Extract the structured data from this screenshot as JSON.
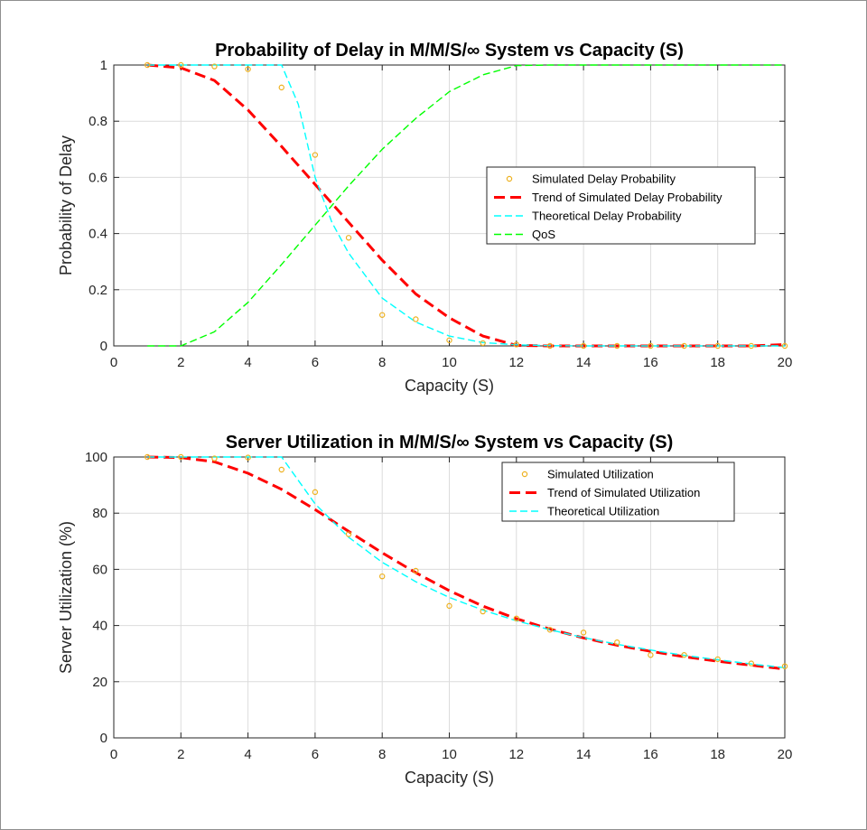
{
  "chart_data": [
    {
      "type": "line",
      "title": "Probability of Delay in M/M/S/∞ System vs Capacity (S)",
      "xlabel": "Capacity (S)",
      "ylabel": "Probability of Delay",
      "xlim": [
        0,
        20
      ],
      "ylim": [
        0,
        1
      ],
      "xticks": [
        0,
        2,
        4,
        6,
        8,
        10,
        12,
        14,
        16,
        18,
        20
      ],
      "yticks": [
        0,
        0.2,
        0.4,
        0.6,
        0.8,
        1
      ],
      "ytick_labels": [
        "0",
        "0.2",
        "0.4",
        "0.6",
        "0.8",
        "1"
      ],
      "grid": true,
      "legend_position": "right",
      "series": [
        {
          "name": "Simulated Delay Probability",
          "style": "markers",
          "color": "#EDB120",
          "x": [
            1,
            2,
            3,
            4,
            5,
            6,
            7,
            8,
            9,
            10,
            11,
            12,
            13,
            14,
            15,
            16,
            17,
            18,
            19,
            20
          ],
          "y": [
            1.0,
            1.0,
            0.995,
            0.985,
            0.92,
            0.68,
            0.385,
            0.11,
            0.095,
            0.02,
            0.01,
            0.005,
            0.0,
            0.0,
            0.0,
            0.0,
            0.0,
            0.0,
            0.0,
            0.0
          ]
        },
        {
          "name": "Trend of Simulated Delay Probability",
          "style": "thick-dash",
          "color": "#FF0000",
          "x": [
            1,
            2,
            3,
            4,
            5,
            6,
            7,
            8,
            9,
            10,
            11,
            12,
            13,
            14,
            15,
            16,
            17,
            18,
            19,
            20
          ],
          "y": [
            1.0,
            0.99,
            0.945,
            0.84,
            0.71,
            0.575,
            0.44,
            0.305,
            0.185,
            0.1,
            0.035,
            0.002,
            0.0,
            0.0,
            0.0,
            0.0,
            0.0,
            0.0,
            0.0,
            0.005
          ]
        },
        {
          "name": "Theoretical Delay Probability",
          "style": "dash",
          "color": "#00FFFF",
          "x": [
            1,
            2,
            3,
            4,
            5,
            5.5,
            6,
            6.5,
            7,
            8,
            9,
            10,
            11,
            12,
            13,
            14,
            15,
            16,
            17,
            18,
            19,
            20
          ],
          "y": [
            1.0,
            1.0,
            1.0,
            1.0,
            1.0,
            0.86,
            0.6,
            0.44,
            0.33,
            0.17,
            0.085,
            0.035,
            0.012,
            0.004,
            0.001,
            0.0,
            0.0,
            0.0,
            0.0,
            0.0,
            0.0,
            0.0
          ]
        },
        {
          "name": "QoS",
          "style": "dash",
          "color": "#00FF00",
          "x": [
            1,
            2,
            3,
            4,
            5,
            6,
            7,
            8,
            9,
            10,
            11,
            12,
            13,
            14,
            15,
            16,
            17,
            18,
            19,
            20
          ],
          "y": [
            0.0,
            0.0,
            0.05,
            0.155,
            0.29,
            0.43,
            0.57,
            0.7,
            0.81,
            0.905,
            0.965,
            0.998,
            1.0,
            1.0,
            1.0,
            1.0,
            1.0,
            1.0,
            1.0,
            1.0
          ]
        }
      ]
    },
    {
      "type": "line",
      "title": "Server Utilization in M/M/S/∞ System vs Capacity (S)",
      "xlabel": "Capacity (S)",
      "ylabel": "Server Utilization (%)",
      "xlim": [
        0,
        20
      ],
      "ylim": [
        0,
        100
      ],
      "xticks": [
        0,
        2,
        4,
        6,
        8,
        10,
        12,
        14,
        16,
        18,
        20
      ],
      "yticks": [
        0,
        20,
        40,
        60,
        80,
        100
      ],
      "ytick_labels": [
        "0",
        "20",
        "40",
        "60",
        "80",
        "100"
      ],
      "grid": true,
      "legend_position": "top-right",
      "series": [
        {
          "name": "Simulated Utilization",
          "style": "markers",
          "color": "#EDB120",
          "x": [
            1,
            2,
            3,
            4,
            5,
            6,
            7,
            8,
            9,
            10,
            11,
            12,
            13,
            14,
            15,
            16,
            17,
            18,
            19,
            20
          ],
          "y": [
            100,
            100,
            99.5,
            99.8,
            95.5,
            87.5,
            72.5,
            57.5,
            59.5,
            47,
            45,
            42.5,
            38.5,
            37.5,
            34,
            29.5,
            29.5,
            28,
            26.5,
            25.5
          ]
        },
        {
          "name": "Trend of Simulated Utilization",
          "style": "thick-dash",
          "color": "#FF0000",
          "x": [
            1,
            2,
            3,
            4,
            5,
            6,
            7,
            8,
            9,
            10,
            11,
            12,
            13,
            14,
            15,
            16,
            17,
            18,
            19,
            20
          ],
          "y": [
            100,
            99.8,
            98.3,
            94.2,
            88.5,
            81.3,
            73.5,
            65.9,
            58.8,
            52.4,
            46.9,
            42.4,
            38.7,
            35.6,
            33.0,
            30.8,
            28.9,
            27.3,
            25.9,
            24.5
          ]
        },
        {
          "name": "Theoretical Utilization",
          "style": "dash",
          "color": "#00FFFF",
          "x": [
            1,
            2,
            3,
            4,
            5,
            6,
            7,
            8,
            9,
            10,
            11,
            12,
            13,
            14,
            15,
            16,
            17,
            18,
            19,
            20
          ],
          "y": [
            100,
            100,
            100,
            100,
            100,
            83.3,
            71.4,
            62.5,
            55.6,
            50.0,
            45.5,
            41.7,
            38.5,
            35.7,
            33.3,
            31.3,
            29.4,
            27.8,
            26.3,
            25.0
          ]
        }
      ]
    }
  ]
}
